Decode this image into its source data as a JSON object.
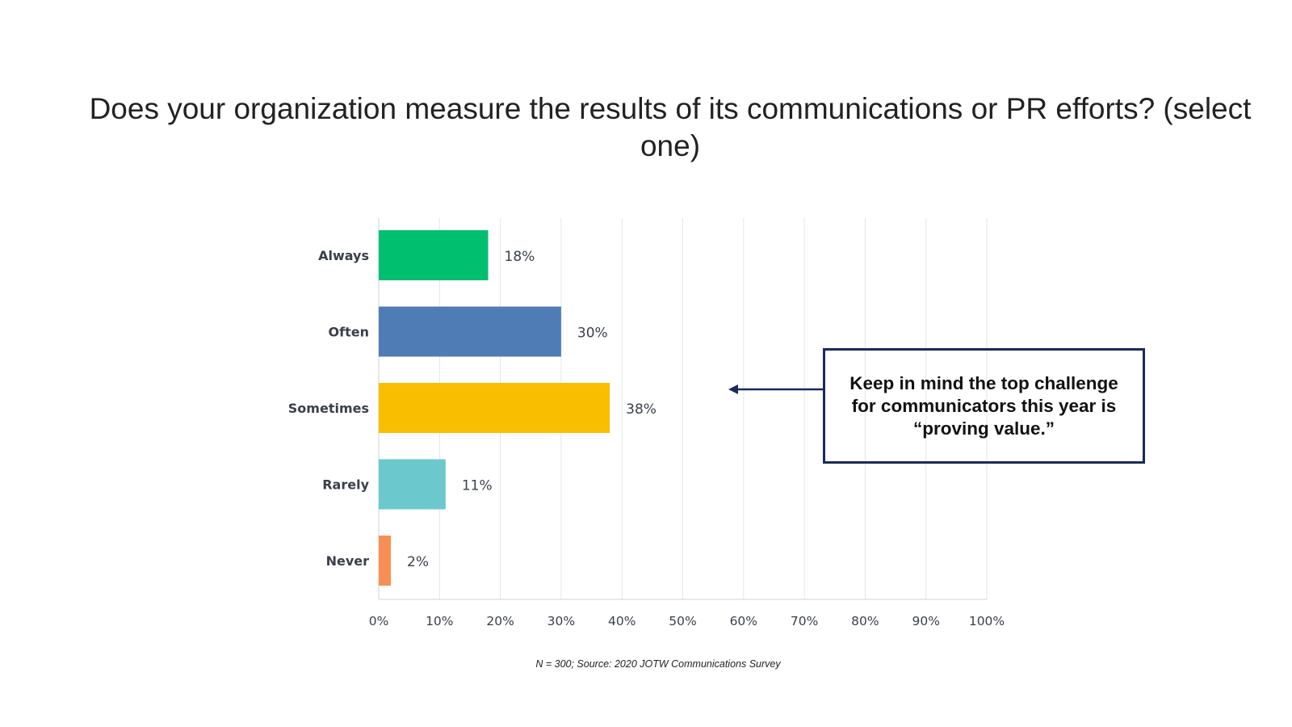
{
  "title": "Does your organization measure the results of its communications or PR efforts? (select one)",
  "chart_data": {
    "type": "bar",
    "orientation": "horizontal",
    "categories": [
      "Always",
      "Often",
      "Sometimes",
      "Rarely",
      "Never"
    ],
    "values": [
      18,
      30,
      38,
      11,
      2
    ],
    "value_labels": [
      "18%",
      "30%",
      "38%",
      "11%",
      "2%"
    ],
    "colors": [
      "#00bf6f",
      "#507cb6",
      "#f9be00",
      "#6bc8cd",
      "#f78f54"
    ],
    "xlim": [
      0,
      100
    ],
    "xticks": [
      0,
      10,
      20,
      30,
      40,
      50,
      60,
      70,
      80,
      90,
      100
    ],
    "xtick_labels": [
      "0%",
      "10%",
      "20%",
      "30%",
      "40%",
      "50%",
      "60%",
      "70%",
      "80%",
      "90%",
      "100%"
    ],
    "grid": true,
    "xlabel": "",
    "ylabel": ""
  },
  "callout": {
    "text": "Keep in mind the top challenge for communicators this year is “proving value.”",
    "border_color": "#1a2a5c",
    "points_to": "Sometimes"
  },
  "source": "N = 300; Source: 2020 JOTW Communications Survey"
}
